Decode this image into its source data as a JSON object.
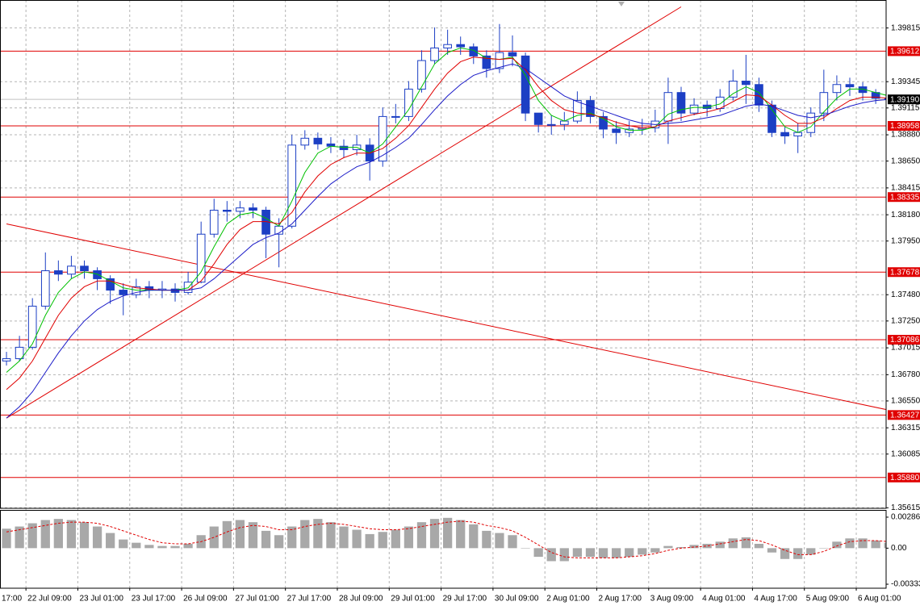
{
  "chart_data": {
    "type": "candlestick",
    "categories": [
      "17:00",
      null,
      "22 Jul 09:00",
      null,
      null,
      null,
      "23 Jul 01:00",
      null,
      null,
      null,
      "23 Jul 17:00",
      null,
      null,
      null,
      "26 Jul 09:00",
      null,
      null,
      null,
      "27 Jul 01:00",
      null,
      null,
      null,
      "27 Jul 17:00",
      null,
      null,
      null,
      "28 Jul 09:00",
      null,
      null,
      null,
      "29 Jul 01:00",
      null,
      null,
      null,
      "29 Jul 17:00",
      null,
      null,
      null,
      "30 Jul 09:00",
      null,
      null,
      null,
      "2 Aug 01:00",
      null,
      null,
      null,
      "2 Aug 17:00",
      null,
      null,
      null,
      "3 Aug 09:00",
      null,
      null,
      null,
      "4 Aug 01:00",
      null,
      null,
      null,
      "4 Aug 17:00",
      null,
      null,
      null,
      "5 Aug 09:00",
      null,
      null,
      null,
      "6 Aug 01:00",
      null,
      null
    ],
    "open": [
      1.369,
      1.3692,
      1.3702,
      1.3738,
      1.3769,
      1.3766,
      1.3773,
      1.3769,
      1.3762,
      1.3752,
      1.3748,
      1.3755,
      1.3752,
      1.3753,
      1.375,
      1.3759,
      1.3801,
      1.3822,
      1.3821,
      1.3824,
      1.3822,
      1.3801,
      1.3808,
      1.3879,
      1.3885,
      1.388,
      1.3878,
      1.3875,
      1.3879,
      1.3865,
      1.3904,
      1.3904,
      1.3928,
      1.3953,
      1.3964,
      1.3967,
      1.3965,
      1.3957,
      1.3946,
      1.396,
      1.3957,
      1.3907,
      1.3897,
      1.3897,
      1.39,
      1.3918,
      1.3904,
      1.3893,
      1.389,
      1.3893,
      1.3894,
      1.39,
      1.3925,
      1.3907,
      1.3914,
      1.3911,
      1.3921,
      1.3935,
      1.3932,
      1.3914,
      1.389,
      1.3887,
      1.389,
      1.3907,
      1.3925,
      1.3932,
      1.393,
      1.3925,
      1.392
    ],
    "high": [
      1.3698,
      1.3712,
      1.3745,
      1.3785,
      1.3778,
      1.3782,
      1.3778,
      1.3772,
      1.3765,
      1.3758,
      1.3762,
      1.376,
      1.376,
      1.3758,
      1.3768,
      1.3812,
      1.3832,
      1.383,
      1.383,
      1.3828,
      1.3825,
      1.3815,
      1.3888,
      1.3892,
      1.389,
      1.3886,
      1.3884,
      1.3888,
      1.3885,
      1.3912,
      1.3915,
      1.3935,
      1.3962,
      1.3982,
      1.398,
      1.3974,
      1.3968,
      1.3962,
      1.3985,
      1.3975,
      1.396,
      1.3906,
      1.3905,
      1.3908,
      1.3926,
      1.3922,
      1.3908,
      1.39,
      1.39,
      1.3902,
      1.391,
      1.3938,
      1.393,
      1.392,
      1.3918,
      1.3928,
      1.3945,
      1.3958,
      1.3938,
      1.3918,
      1.3895,
      1.3898,
      1.3912,
      1.3945,
      1.394,
      1.3938,
      1.3934,
      1.3928,
      1.3924
    ],
    "low": [
      1.3686,
      1.369,
      1.37,
      1.3735,
      1.376,
      1.3762,
      1.3762,
      1.3752,
      1.374,
      1.373,
      1.3745,
      1.3745,
      1.3745,
      1.3742,
      1.3748,
      1.3758,
      1.3798,
      1.3812,
      1.3815,
      1.3815,
      1.378,
      1.3772,
      1.3806,
      1.3875,
      1.3875,
      1.3872,
      1.3868,
      1.387,
      1.3848,
      1.386,
      1.3898,
      1.39,
      1.3925,
      1.395,
      1.3958,
      1.3958,
      1.395,
      1.3938,
      1.3942,
      1.3948,
      1.39,
      1.389,
      1.3888,
      1.3892,
      1.3898,
      1.3898,
      1.3885,
      1.388,
      1.3886,
      1.3888,
      1.389,
      1.388,
      1.39,
      1.3905,
      1.3904,
      1.3908,
      1.3918,
      1.3915,
      1.3908,
      1.3886,
      1.388,
      1.3872,
      1.3886,
      1.39,
      1.3918,
      1.3922,
      1.3918,
      1.3915,
      1.3915
    ],
    "close": [
      1.3692,
      1.3702,
      1.3738,
      1.3769,
      1.3766,
      1.3773,
      1.3769,
      1.3762,
      1.3752,
      1.3748,
      1.3755,
      1.3752,
      1.3753,
      1.375,
      1.3759,
      1.3801,
      1.3822,
      1.3821,
      1.3824,
      1.3822,
      1.3801,
      1.3808,
      1.3879,
      1.3885,
      1.388,
      1.3878,
      1.3875,
      1.3879,
      1.3865,
      1.3904,
      1.3904,
      1.3928,
      1.3953,
      1.3964,
      1.3967,
      1.3965,
      1.3957,
      1.3946,
      1.396,
      1.3957,
      1.3907,
      1.3897,
      1.3897,
      1.39,
      1.3918,
      1.3904,
      1.3893,
      1.389,
      1.3893,
      1.3894,
      1.39,
      1.3925,
      1.3907,
      1.3914,
      1.3911,
      1.3921,
      1.3935,
      1.3932,
      1.3914,
      1.389,
      1.3887,
      1.389,
      1.3907,
      1.3925,
      1.3932,
      1.393,
      1.3925,
      1.392,
      1.3919
    ],
    "color": "#1c3fc4",
    "ylim": [
      1.3561,
      1.4006
    ],
    "yticks": [
      1.39815,
      1.39345,
      1.39115,
      {
        "value": 1.3888,
        "label": "1.38880"
      },
      {
        "value": 1.3865,
        "label": "1.38650"
      },
      1.38415,
      {
        "value": 1.3818,
        "label": "1.38180"
      },
      {
        "value": 1.3795,
        "label": "1.37950"
      },
      {
        "value": 1.3748,
        "label": "1.37480"
      },
      {
        "value": 1.3725,
        "label": "1.37250"
      },
      1.37015,
      {
        "value": 1.3678,
        "label": "1.36780"
      },
      {
        "value": 1.3655,
        "label": "1.36550"
      },
      1.36315,
      1.36085,
      1.35615
    ],
    "grid": true,
    "moving_averages": [
      {
        "color": "#00c000",
        "values": [
          1.368,
          1.369,
          1.3705,
          1.373,
          1.375,
          1.3762,
          1.3768,
          1.3766,
          1.376,
          1.3754,
          1.3752,
          1.3752,
          1.3752,
          1.3752,
          1.3754,
          1.3768,
          1.379,
          1.381,
          1.3818,
          1.382,
          1.3815,
          1.3808,
          1.383,
          1.3855,
          1.3872,
          1.3878,
          1.3877,
          1.3877,
          1.3872,
          1.388,
          1.3895,
          1.391,
          1.393,
          1.395,
          1.396,
          1.3964,
          1.3962,
          1.3955,
          1.3954,
          1.3956,
          1.394,
          1.3918,
          1.3905,
          1.39,
          1.3905,
          1.3907,
          1.3902,
          1.3895,
          1.3892,
          1.3892,
          1.3895,
          1.3906,
          1.391,
          1.3912,
          1.3912,
          1.3915,
          1.3924,
          1.393,
          1.3925,
          1.391,
          1.3895,
          1.389,
          1.3895,
          1.3908,
          1.392,
          1.3928,
          1.3928,
          1.3925,
          1.3922
        ]
      },
      {
        "color": "#e00000",
        "values": [
          1.3665,
          1.3675,
          1.369,
          1.371,
          1.373,
          1.3745,
          1.3755,
          1.376,
          1.376,
          1.3757,
          1.3754,
          1.3753,
          1.3752,
          1.3752,
          1.3752,
          1.376,
          1.3775,
          1.3792,
          1.3805,
          1.3812,
          1.3812,
          1.381,
          1.382,
          1.3838,
          1.3852,
          1.3862,
          1.3868,
          1.3872,
          1.3872,
          1.3876,
          1.3885,
          1.3896,
          1.3912,
          1.3928,
          1.3942,
          1.3952,
          1.3956,
          1.3955,
          1.3954,
          1.3955,
          1.3945,
          1.393,
          1.3918,
          1.391,
          1.3907,
          1.3906,
          1.3903,
          1.3899,
          1.3896,
          1.3894,
          1.3895,
          1.39,
          1.3903,
          1.3906,
          1.3908,
          1.3911,
          1.3917,
          1.3923,
          1.3922,
          1.3914,
          1.3905,
          1.3898,
          1.3898,
          1.3903,
          1.3911,
          1.3918,
          1.3921,
          1.3921,
          1.392
        ]
      },
      {
        "color": "#1c1cc8",
        "values": [
          1.364,
          1.365,
          1.3663,
          1.368,
          1.3697,
          1.3712,
          1.3725,
          1.3735,
          1.3742,
          1.3747,
          1.375,
          1.3752,
          1.3752,
          1.3752,
          1.3752,
          1.3754,
          1.3762,
          1.3772,
          1.3782,
          1.3792,
          1.3798,
          1.3802,
          1.381,
          1.3822,
          1.3834,
          1.3845,
          1.3853,
          1.386,
          1.3864,
          1.387,
          1.3877,
          1.3885,
          1.3897,
          1.391,
          1.3922,
          1.3932,
          1.394,
          1.3944,
          1.3947,
          1.395,
          1.3946,
          1.3938,
          1.393,
          1.3922,
          1.3917,
          1.3913,
          1.3909,
          1.3905,
          1.3901,
          1.3898,
          1.3897,
          1.3898,
          1.3899,
          1.3901,
          1.3903,
          1.3905,
          1.3909,
          1.3913,
          1.3915,
          1.3913,
          1.3909,
          1.3905,
          1.3903,
          1.3905,
          1.3909,
          1.3913,
          1.3916,
          1.3918,
          1.3919
        ]
      }
    ],
    "levels": [
      1.39612,
      1.38958,
      1.38335,
      1.37678,
      1.37086,
      1.36427,
      {
        "value": 1.3588,
        "label": "1.35880"
      }
    ],
    "level_color": "#e00000",
    "current_price": {
      "value": 1.3919,
      "label": "1.39190"
    },
    "trendlines": [
      {
        "x": [
          0,
          52
        ],
        "y": [
          1.364,
          1.4
        ]
      },
      {
        "x": [
          0,
          68
        ],
        "y": [
          1.381,
          1.3647
        ]
      }
    ],
    "indicator": {
      "type": "macd",
      "histogram": [
        0.0018,
        0.002,
        0.0023,
        0.0026,
        0.0027,
        0.0026,
        0.0024,
        0.002,
        0.0014,
        0.0008,
        0.0005,
        0.0003,
        0.0002,
        0.0002,
        0.0004,
        0.0012,
        0.002,
        0.0025,
        0.0026,
        0.0024,
        0.0016,
        0.0012,
        0.002,
        0.0026,
        0.0027,
        0.0024,
        0.002,
        0.0017,
        0.0013,
        0.0015,
        0.0017,
        0.002,
        0.0024,
        0.0027,
        0.0028,
        0.0026,
        0.0022,
        0.0016,
        0.0014,
        0.0012,
        0.0,
        -0.0008,
        -0.0012,
        -0.0012,
        -0.0008,
        -0.0008,
        -0.0009,
        -0.0009,
        -0.0008,
        -0.0006,
        -0.0004,
        0.0002,
        0.0001,
        0.0003,
        0.0004,
        0.0006,
        0.0009,
        0.001,
        0.0004,
        -0.0004,
        -0.001,
        -0.001,
        -0.0006,
        0.0,
        0.0006,
        0.0009,
        0.0009,
        0.0007,
        0.0005
      ],
      "signal": [
        0.0015,
        0.0017,
        0.0019,
        0.0021,
        0.0023,
        0.0024,
        0.0024,
        0.0023,
        0.002,
        0.0016,
        0.0012,
        0.0008,
        0.0005,
        0.0004,
        0.0004,
        0.0006,
        0.001,
        0.0015,
        0.0019,
        0.0021,
        0.002,
        0.0017,
        0.0017,
        0.002,
        0.0022,
        0.0023,
        0.0022,
        0.002,
        0.0018,
        0.0017,
        0.0017,
        0.0018,
        0.002,
        0.0022,
        0.0024,
        0.0025,
        0.0024,
        0.0021,
        0.0019,
        0.0016,
        0.001,
        0.0003,
        -0.0004,
        -0.0008,
        -0.0009,
        -0.0009,
        -0.0009,
        -0.0009,
        -0.0008,
        -0.0007,
        -0.0005,
        -0.0002,
        0.0,
        0.0001,
        0.0002,
        0.0004,
        0.0006,
        0.0008,
        0.0007,
        0.0003,
        -0.0002,
        -0.0006,
        -0.0006,
        -0.0003,
        0.0002,
        0.0006,
        0.0007,
        0.0007,
        0.0006
      ],
      "ylim": [
        -0.0037,
        0.00353
      ],
      "yticks": [
        0.002863,
        {
          "value": 0,
          "label": "0.00"
        },
        -0.00333
      ],
      "histogram_color": "#a8a8a8",
      "signal_color": "#e00000"
    }
  }
}
